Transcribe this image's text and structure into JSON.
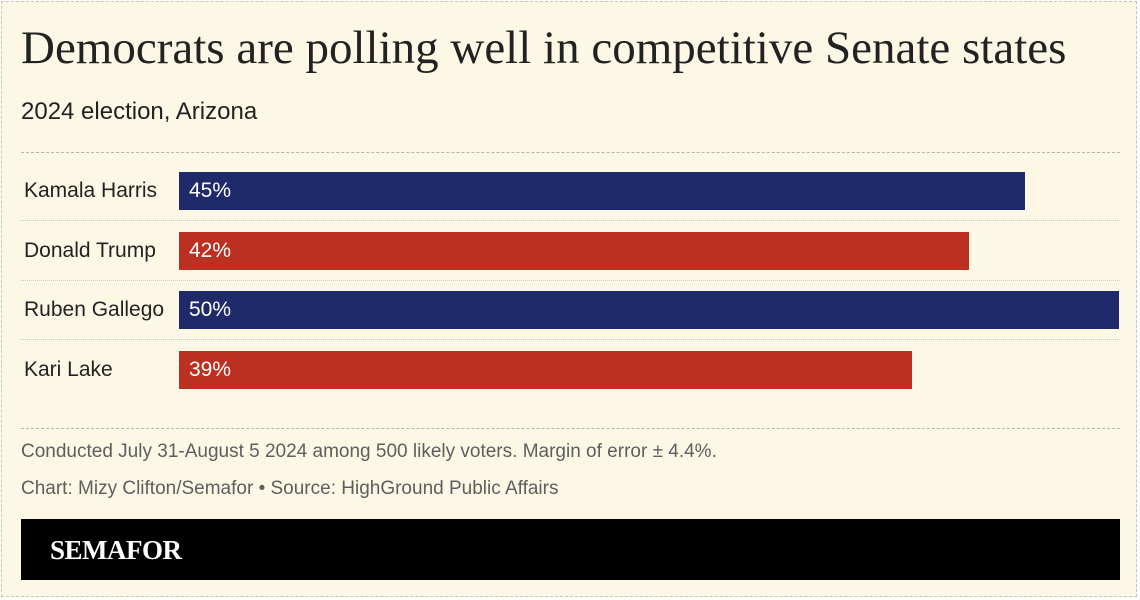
{
  "header": {
    "title": "Democrats are polling well in competitive Senate states",
    "subtitle": "2024 election, Arizona"
  },
  "chart_data": {
    "type": "bar",
    "orientation": "horizontal",
    "title": "Democrats are polling well in competitive Senate states",
    "subtitle": "2024 election, Arizona",
    "categories": [
      "Kamala Harris",
      "Donald Trump",
      "Ruben Gallego",
      "Kari Lake"
    ],
    "values": [
      45,
      42,
      50,
      39
    ],
    "value_labels": [
      "45%",
      "42%",
      "50%",
      "39%"
    ],
    "party": [
      "democrat",
      "republican",
      "democrat",
      "republican"
    ],
    "xlim": [
      0,
      50
    ],
    "grid": false,
    "legend": "none"
  },
  "colors": {
    "democrat": "#1f2a6b",
    "republican": "#bb3020",
    "background": "#fdf8e6"
  },
  "footer": {
    "note": "Conducted July 31-August 5 2024 among 500 likely voters. Margin of error ± 4.4%.",
    "credit": "Chart: Mizy Clifton/Semafor • Source: HighGround Public Affairs",
    "brand": "SEMAFOR"
  }
}
